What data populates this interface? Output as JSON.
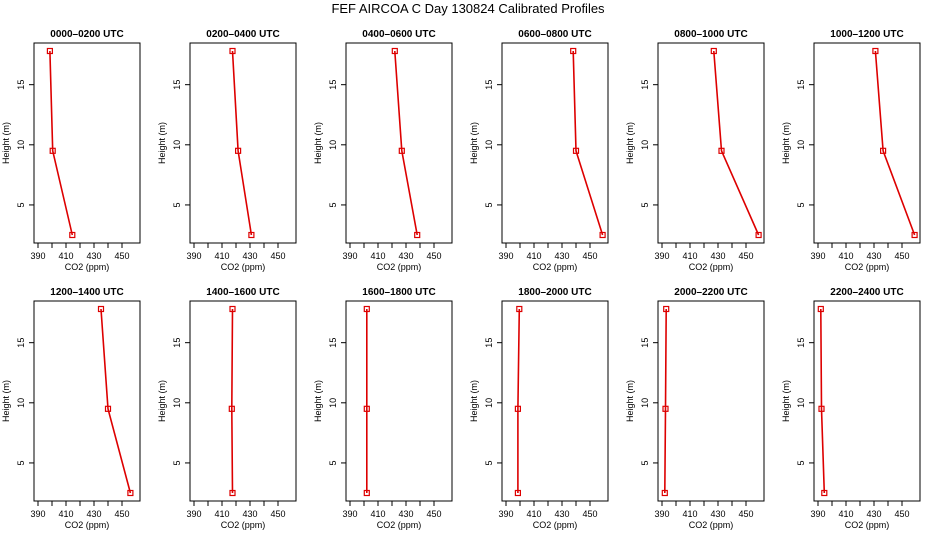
{
  "figure": {
    "title": "FEF AIRCOA C  Day 130824  Calibrated Profiles"
  },
  "chart_data": [
    {
      "type": "line",
      "title": "0000–0200 UTC",
      "xlabel": "CO2 (ppm)",
      "ylabel": "Height (m)",
      "xlim": [
        390,
        460
      ],
      "ylim": [
        2.5,
        17.8
      ],
      "xticks": [
        390,
        410,
        430,
        450
      ],
      "yticks": [
        5,
        10,
        15
      ],
      "series": [
        {
          "x": [
            414.5,
            400.5,
            398.5
          ],
          "y": [
            2.5,
            9.5,
            17.8
          ],
          "color": "#dd0000"
        }
      ]
    },
    {
      "type": "line",
      "title": "0200–0400 UTC",
      "xlabel": "CO2 (ppm)",
      "ylabel": "Height (m)",
      "xlim": [
        390,
        460
      ],
      "ylim": [
        2.5,
        17.8
      ],
      "xticks": [
        390,
        410,
        430,
        450
      ],
      "yticks": [
        5,
        10,
        15
      ],
      "series": [
        {
          "x": [
            431,
            421.5,
            417.5
          ],
          "y": [
            2.5,
            9.5,
            17.8
          ],
          "color": "#dd0000"
        }
      ]
    },
    {
      "type": "line",
      "title": "0400–0600 UTC",
      "xlabel": "CO2 (ppm)",
      "ylabel": "Height (m)",
      "xlim": [
        390,
        460
      ],
      "ylim": [
        2.5,
        17.8
      ],
      "xticks": [
        390,
        410,
        430,
        450
      ],
      "yticks": [
        5,
        10,
        15
      ],
      "series": [
        {
          "x": [
            438,
            427,
            422
          ],
          "y": [
            2.5,
            9.5,
            17.8
          ],
          "color": "#dd0000"
        }
      ]
    },
    {
      "type": "line",
      "title": "0600–0800 UTC",
      "xlabel": "CO2 (ppm)",
      "ylabel": "Height (m)",
      "xlim": [
        390,
        460
      ],
      "ylim": [
        2.5,
        17.8
      ],
      "xticks": [
        390,
        410,
        430,
        450
      ],
      "yticks": [
        5,
        10,
        15
      ],
      "series": [
        {
          "x": [
            459,
            440,
            438
          ],
          "y": [
            2.5,
            9.5,
            17.8
          ],
          "color": "#dd0000"
        }
      ]
    },
    {
      "type": "line",
      "title": "0800–1000 UTC",
      "xlabel": "CO2 (ppm)",
      "ylabel": "Height (m)",
      "xlim": [
        390,
        460
      ],
      "ylim": [
        2.5,
        17.8
      ],
      "xticks": [
        390,
        410,
        430,
        450
      ],
      "yticks": [
        5,
        10,
        15
      ],
      "series": [
        {
          "x": [
            459,
            432.5,
            427
          ],
          "y": [
            2.5,
            9.5,
            17.8
          ],
          "color": "#dd0000"
        }
      ]
    },
    {
      "type": "line",
      "title": "1000–1200 UTC",
      "xlabel": "CO2 (ppm)",
      "ylabel": "Height (m)",
      "xlim": [
        390,
        460
      ],
      "ylim": [
        2.5,
        17.8
      ],
      "xticks": [
        390,
        410,
        430,
        450
      ],
      "yticks": [
        5,
        10,
        15
      ],
      "series": [
        {
          "x": [
            459,
            436.5,
            431
          ],
          "y": [
            2.5,
            9.5,
            17.8
          ],
          "color": "#dd0000"
        }
      ]
    },
    {
      "type": "line",
      "title": "1200–1400 UTC",
      "xlabel": "CO2 (ppm)",
      "ylabel": "Height (m)",
      "xlim": [
        390,
        460
      ],
      "ylim": [
        2.5,
        17.8
      ],
      "xticks": [
        390,
        410,
        430,
        450
      ],
      "yticks": [
        5,
        10,
        15
      ],
      "series": [
        {
          "x": [
            456,
            440,
            435
          ],
          "y": [
            2.5,
            9.5,
            17.8
          ],
          "color": "#dd0000"
        }
      ]
    },
    {
      "type": "line",
      "title": "1400–1600 UTC",
      "xlabel": "CO2 (ppm)",
      "ylabel": "Height (m)",
      "xlim": [
        390,
        460
      ],
      "ylim": [
        2.5,
        17.8
      ],
      "xticks": [
        390,
        410,
        430,
        450
      ],
      "yticks": [
        5,
        10,
        15
      ],
      "series": [
        {
          "x": [
            417.5,
            417,
            417.5
          ],
          "y": [
            2.5,
            9.5,
            17.8
          ],
          "color": "#dd0000"
        }
      ]
    },
    {
      "type": "line",
      "title": "1600–1800 UTC",
      "xlabel": "CO2 (ppm)",
      "ylabel": "Height (m)",
      "xlim": [
        390,
        460
      ],
      "ylim": [
        2.5,
        17.8
      ],
      "xticks": [
        390,
        410,
        430,
        450
      ],
      "yticks": [
        5,
        10,
        15
      ],
      "series": [
        {
          "x": [
            402,
            402,
            402
          ],
          "y": [
            2.5,
            9.5,
            17.8
          ],
          "color": "#dd0000"
        }
      ]
    },
    {
      "type": "line",
      "title": "1800–2000 UTC",
      "xlabel": "CO2 (ppm)",
      "ylabel": "Height (m)",
      "xlim": [
        390,
        460
      ],
      "ylim": [
        2.5,
        17.8
      ],
      "xticks": [
        390,
        410,
        430,
        450
      ],
      "yticks": [
        5,
        10,
        15
      ],
      "series": [
        {
          "x": [
            398.5,
            398.5,
            399.5
          ],
          "y": [
            2.5,
            9.5,
            17.8
          ],
          "color": "#dd0000"
        }
      ]
    },
    {
      "type": "line",
      "title": "2000–2200 UTC",
      "xlabel": "CO2 (ppm)",
      "ylabel": "Height (m)",
      "xlim": [
        390,
        460
      ],
      "ylim": [
        2.5,
        17.8
      ],
      "xticks": [
        390,
        410,
        430,
        450
      ],
      "yticks": [
        5,
        10,
        15
      ],
      "series": [
        {
          "x": [
            392,
            392.5,
            393
          ],
          "y": [
            2.5,
            9.5,
            17.8
          ],
          "color": "#dd0000"
        }
      ]
    },
    {
      "type": "line",
      "title": "2200–2400 UTC",
      "xlabel": "CO2 (ppm)",
      "ylabel": "Height (m)",
      "xlim": [
        390,
        460
      ],
      "ylim": [
        2.5,
        17.8
      ],
      "xticks": [
        390,
        410,
        430,
        450
      ],
      "yticks": [
        5,
        10,
        15
      ],
      "series": [
        {
          "x": [
            394.5,
            392.5,
            392
          ],
          "y": [
            2.5,
            9.5,
            17.8
          ],
          "color": "#dd0000"
        }
      ]
    }
  ]
}
